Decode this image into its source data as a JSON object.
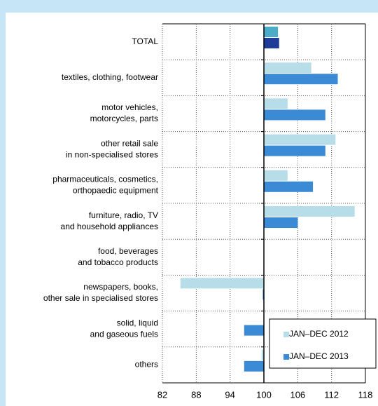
{
  "chart_data": {
    "type": "hbar",
    "categories": [
      [
        "TOTAL"
      ],
      [
        "textiles, clothing, footwear"
      ],
      [
        "motor vehicles,",
        "motorcycles, parts"
      ],
      [
        "other retail sale",
        "in non-specialised stores"
      ],
      [
        "pharmaceuticals, cosmetics,",
        "orthopaedic equipment"
      ],
      [
        "furniture, radio, TV",
        "and household appliances"
      ],
      [
        "food, beverages",
        "and tobacco products"
      ],
      [
        "newspapers, books,",
        "other sale in specialised stores"
      ],
      [
        "solid, liquid",
        "and gaseous fuels"
      ],
      [
        "others"
      ]
    ],
    "series": [
      {
        "name": "JAN–DEC 2012",
        "color": "#b7dde8",
        "first_color": "#4aacc6",
        "values": [
          102.5,
          108.4,
          104.2,
          112.7,
          104.2,
          116.1,
          100,
          85.2,
          100,
          99.6
        ]
      },
      {
        "name": "JAN–DEC 2013",
        "color": "#3a8ad6",
        "first_color": "#1f3c99",
        "values": [
          102.7,
          113.1,
          110.9,
          110.9,
          108.7,
          106.0,
          100,
          99.8,
          96.5,
          96.5
        ]
      }
    ],
    "xlim": [
      82,
      118
    ],
    "xticks": [
      82,
      88,
      94,
      100,
      106,
      112,
      118
    ],
    "baseline": 100,
    "grid": true,
    "legend": "lower-right"
  }
}
